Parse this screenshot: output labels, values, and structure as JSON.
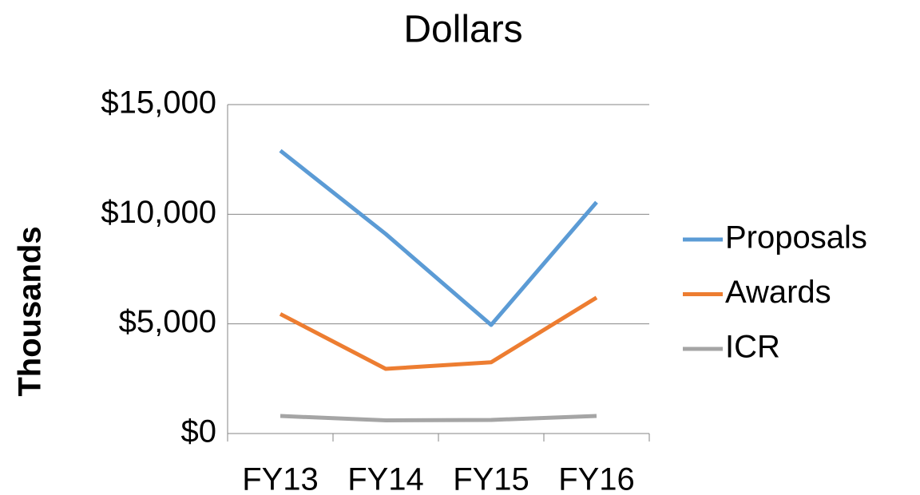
{
  "chart_data": {
    "type": "line",
    "title": "Dollars",
    "y_label": "Thousands",
    "categories": [
      "FY13",
      "FY14",
      "FY15",
      "FY16"
    ],
    "series": [
      {
        "name": "Proposals",
        "color": "#5b9bd5",
        "values": [
          12900,
          9100,
          4950,
          10550
        ]
      },
      {
        "name": "Awards",
        "color": "#ed7d31",
        "values": [
          5450,
          2950,
          3250,
          6200
        ]
      },
      {
        "name": "ICR",
        "color": "#a5a5a5",
        "values": [
          800,
          600,
          620,
          800
        ]
      }
    ],
    "ylim": [
      0,
      15000
    ],
    "yticks": [
      {
        "value": 0,
        "label": "$0"
      },
      {
        "value": 5000,
        "label": "$5,000"
      },
      {
        "value": 10000,
        "label": "$10,000"
      },
      {
        "value": 15000,
        "label": "$15,000"
      }
    ],
    "grid": true,
    "legend": "right"
  }
}
